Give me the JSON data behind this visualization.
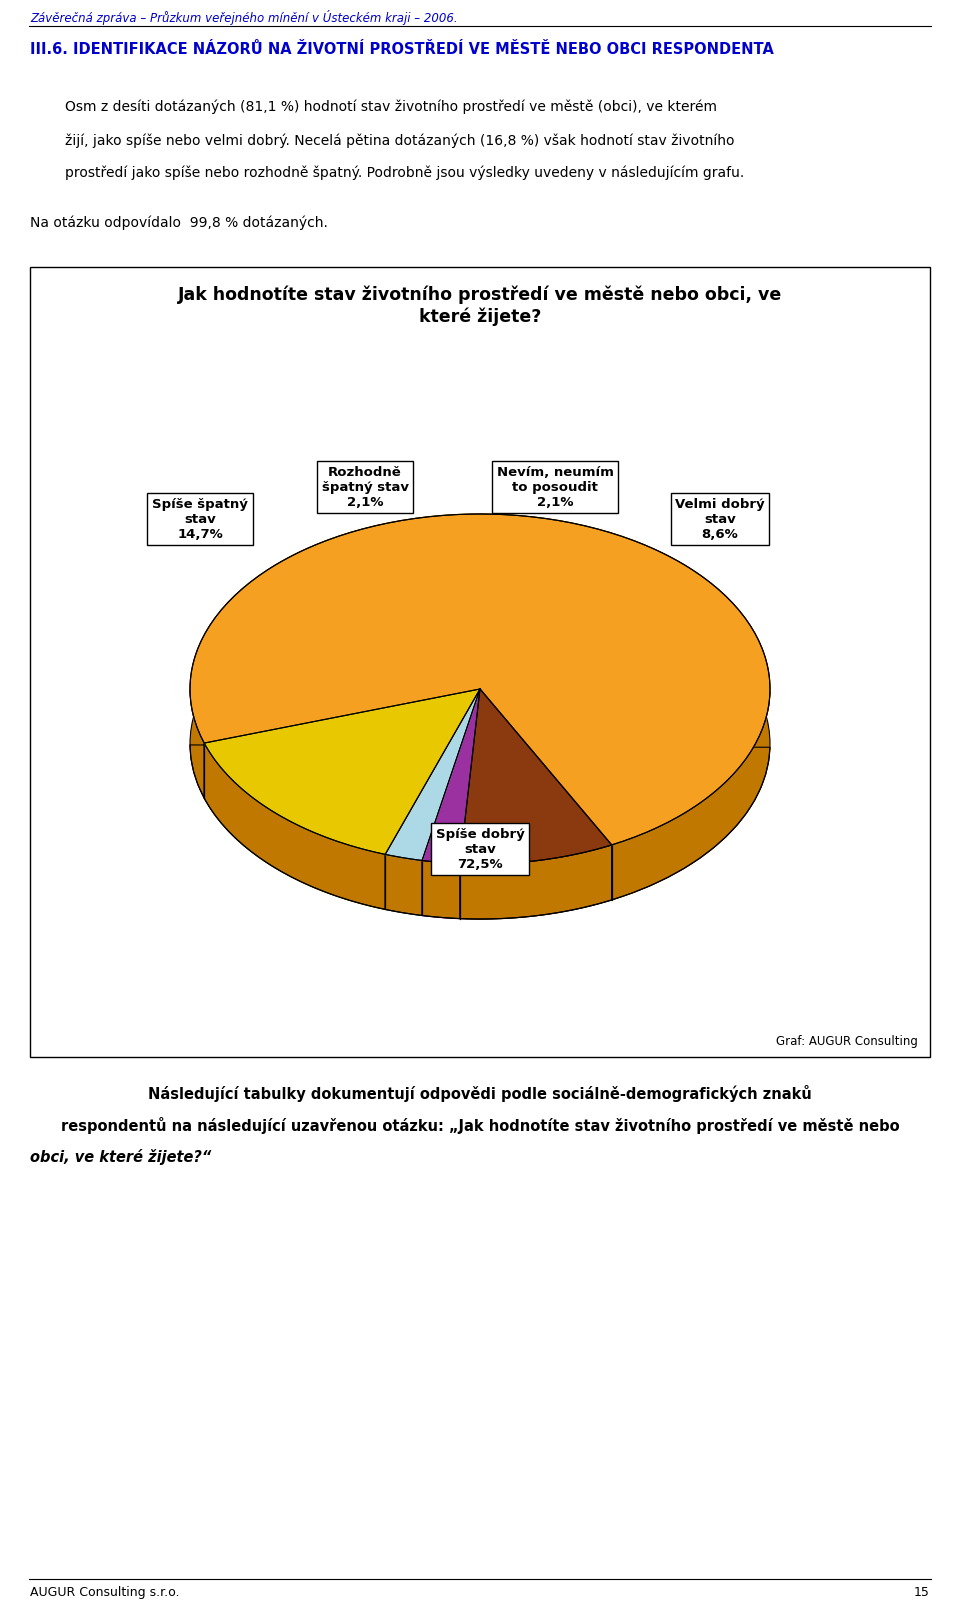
{
  "page_title": "Závěrečná zpráva – Průzkum veřejného mínění v Ústeckém kraji – 2006.",
  "section_title": "III.6. IDENTIFIKACE NÁZORŮ NA ŽIVOTNÍ PROSTŘEDÍ VE MĚSTĚ NEBO OBCI RESPONDENTA",
  "para1_line1": "Osm z desíti dotázaných (81,1 %) hodnotí stav životního prostředí ve městě (obci), ve kterém",
  "para1_line2": "žijí, jako spíše nebo velmi dobrý. Necelá pětina dotázaných (16,8 %) však hodnotí stav životního",
  "para1_line3": "prostředí jako spíše nebo rozhodně špatný. Podrobně jsou výsledky uvedeny v následujícím grafu.",
  "paragraph2": "Na otázku odpovídalo  99,8 % dotázaných.",
  "chart_title_line1": "Jak hodnotíte stav životního prostředí ve městě nebo obci, ve",
  "chart_title_line2": "které žijete?",
  "values": [
    72.5,
    8.6,
    2.1,
    2.1,
    14.7
  ],
  "colors": [
    "#F5A020",
    "#8B3A0F",
    "#9B30A0",
    "#ADD8E6",
    "#E8C800"
  ],
  "colors_dark": [
    "#C07800",
    "#5A2008",
    "#6B1070",
    "#7098A8",
    "#A89000"
  ],
  "labels": [
    "Spíše dobrý\nstav\n72,5%",
    "Velmi dobrý\nstav\n8,6%",
    "Nevím, neumím\nto posoudit\n2,1%",
    "Rozhodně\nšpatný stav\n2,1%",
    "Spíše špatný\nstav\n14,7%"
  ],
  "startangle": 198,
  "graf_label": "Graf: AUGUR Consulting",
  "footer_line1": "Následující tabulky dokumentují odpovědi podle sociálně-demografických znaků",
  "footer_line2": "respondentů na následující uzavřenou otázku: „Jak hodnotíte stav životního prostředí ve městě nebo",
  "footer_line3": "obci, ve které žijete?“",
  "footer_label": "AUGUR Consulting s.r.o.",
  "page_number": "15"
}
